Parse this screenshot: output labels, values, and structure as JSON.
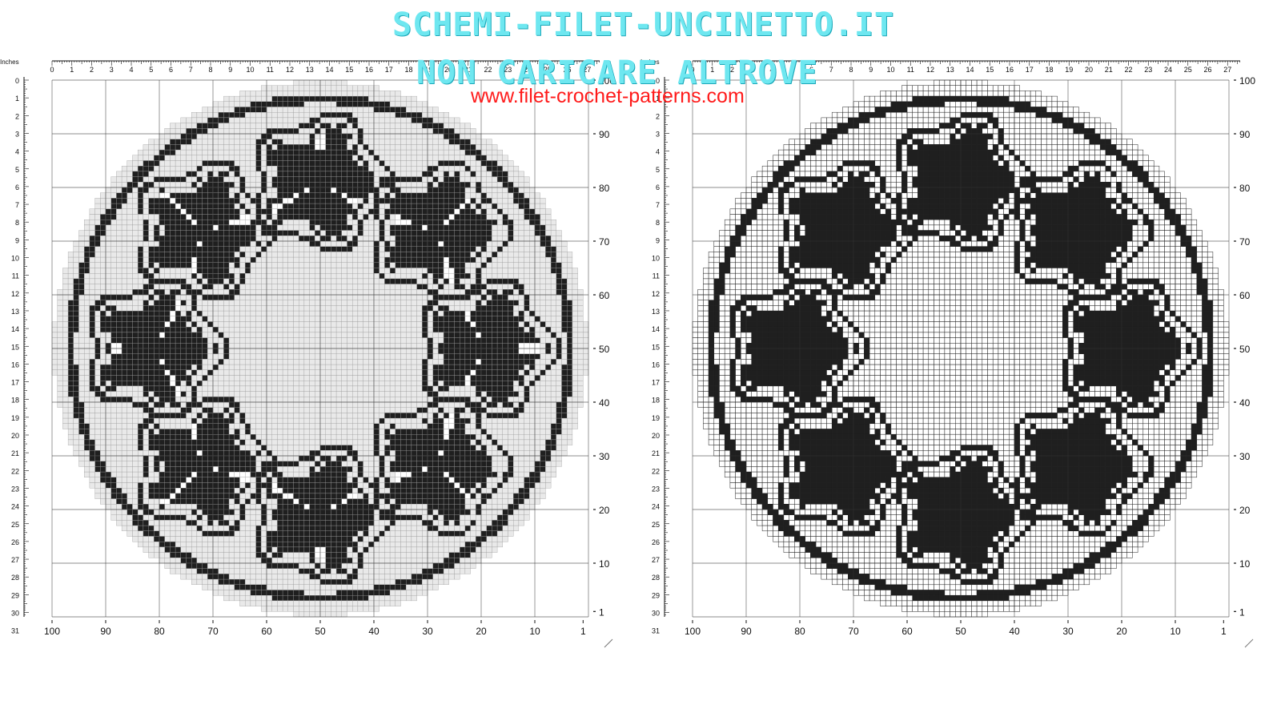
{
  "watermark": {
    "line1": "SCHEMI-FILET-UNCINETTO.IT",
    "line2": "NON CARICARE ALTROVE",
    "url": "www.filet-crochet-patterns.com"
  },
  "ruler": {
    "unit_label": "Inches",
    "top_ticks": [
      "0",
      "1",
      "2",
      "3",
      "4",
      "5",
      "6",
      "7",
      "8",
      "9",
      "10",
      "11",
      "12",
      "13",
      "14",
      "15",
      "16",
      "17",
      "18",
      "19",
      "20",
      "21",
      "22",
      "23",
      "24",
      "25",
      "26",
      "27"
    ],
    "left_ticks": [
      "0",
      "1",
      "2",
      "3",
      "4",
      "5",
      "6",
      "7",
      "8",
      "9",
      "10",
      "11",
      "12",
      "13",
      "14",
      "15",
      "16",
      "17",
      "18",
      "19",
      "20",
      "21",
      "22",
      "23",
      "24",
      "25",
      "26",
      "27",
      "28",
      "29",
      "30",
      "31"
    ],
    "bottom_ticks": [
      "100",
      "90",
      "80",
      "70",
      "60",
      "50",
      "40",
      "30",
      "20",
      "10",
      "1"
    ],
    "right_ticks": [
      "100",
      "90",
      "80",
      "70",
      "60",
      "50",
      "40",
      "30",
      "20",
      "10",
      "1"
    ]
  },
  "patterns": [
    {
      "id": "left-chart",
      "style": "outline"
    },
    {
      "id": "right-chart",
      "style": "filled"
    }
  ],
  "pattern_colors": {
    "ink": "#1f1f1f",
    "grid": "#9a9a9a",
    "cell": "#e9e9e9",
    "ruler": "#111111"
  }
}
